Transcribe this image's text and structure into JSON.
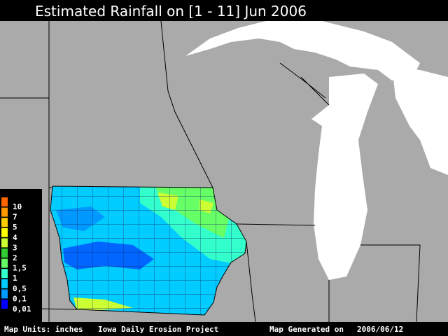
{
  "header": {
    "title": "Estimated Rainfall on [1 - 11] Jun 2006"
  },
  "legend": {
    "items": [
      {
        "label": "10",
        "color": "#ff6600"
      },
      {
        "label": "7",
        "color": "#ff9900"
      },
      {
        "label": "5",
        "color": "#ffcc00"
      },
      {
        "label": "4",
        "color": "#ffff00"
      },
      {
        "label": "3",
        "color": "#ccff33"
      },
      {
        "label": "2",
        "color": "#33cc33"
      },
      {
        "label": "1,5",
        "color": "#66ff66"
      },
      {
        "label": "1",
        "color": "#33ffcc"
      },
      {
        "label": "0,5",
        "color": "#00ccff"
      },
      {
        "label": "0,1",
        "color": "#0099ff"
      },
      {
        "label": "0,01",
        "color": "#0000ff"
      }
    ]
  },
  "footer": {
    "units": "Map Units: inches",
    "project": "Iowa Daily Erosion Project",
    "generated_label": "Map Generated on",
    "generated_date": "2006/06/12"
  }
}
